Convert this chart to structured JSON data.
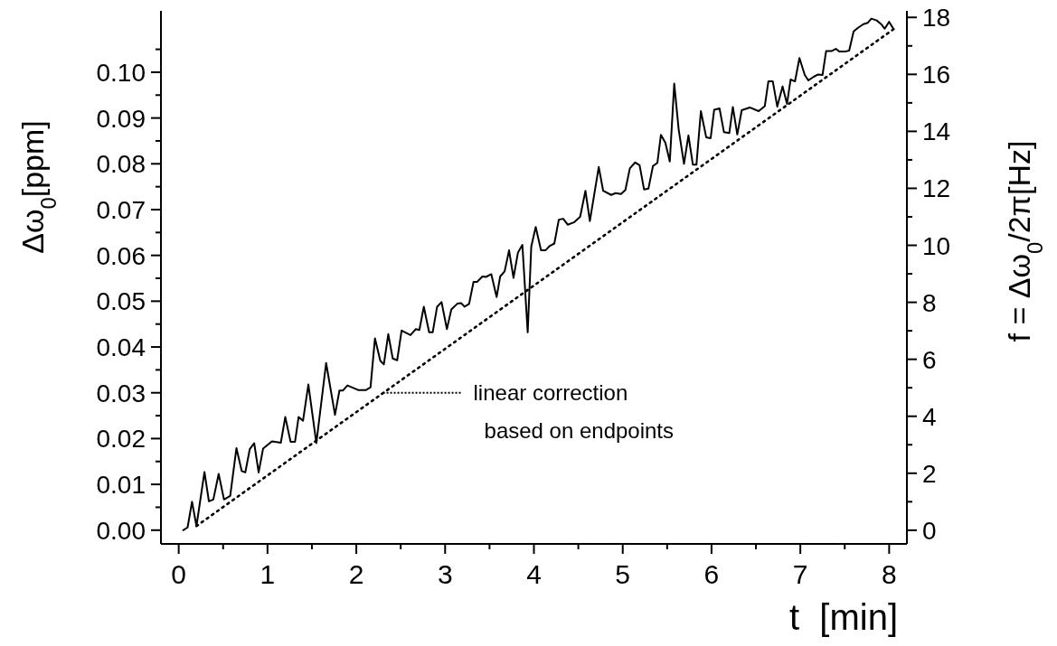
{
  "chart_data": {
    "type": "line",
    "xlabel": "t  [min]",
    "ylabel": "Δω$_{0}$[ppm]",
    "y2label": "f = Δω$_{0}$/2π[Hz]",
    "xlim": [
      -0.2,
      8.2
    ],
    "ylim": [
      -0.003,
      0.1134
    ],
    "y2lim": [
      -0.48,
      18.23
    ],
    "xticks": [
      0,
      {
        "value": 0.5,
        "label": null
      },
      1,
      {
        "value": 1.5,
        "label": null
      },
      2,
      {
        "value": 2.5,
        "label": null
      },
      3,
      {
        "value": 3.5,
        "label": null
      },
      4,
      {
        "value": 4.5,
        "label": null
      },
      5,
      {
        "value": 5.5,
        "label": null
      },
      6,
      {
        "value": 6.5,
        "label": null
      },
      7,
      {
        "value": 7.5,
        "label": null
      },
      8
    ],
    "yticks": [
      {
        "value": 0,
        "label": "0.00"
      },
      {
        "value": 0.005,
        "label": null
      },
      {
        "value": 0.01,
        "label": "0.01"
      },
      {
        "value": 0.015,
        "label": null
      },
      {
        "value": 0.02,
        "label": "0.02"
      },
      {
        "value": 0.025,
        "label": null
      },
      {
        "value": 0.03,
        "label": "0.03"
      },
      {
        "value": 0.035,
        "label": null
      },
      {
        "value": 0.04,
        "label": "0.04"
      },
      {
        "value": 0.045,
        "label": null
      },
      {
        "value": 0.05,
        "label": "0.05"
      },
      {
        "value": 0.055,
        "label": null
      },
      {
        "value": 0.06,
        "label": "0.06"
      },
      {
        "value": 0.065,
        "label": null
      },
      {
        "value": 0.07,
        "label": "0.07"
      },
      {
        "value": 0.075,
        "label": null
      },
      {
        "value": 0.08,
        "label": "0.08"
      },
      {
        "value": 0.085,
        "label": null
      },
      {
        "value": 0.09,
        "label": "0.09"
      },
      {
        "value": 0.095,
        "label": null
      },
      {
        "value": 0.1,
        "label": "0.10"
      },
      {
        "value": 0.105,
        "label": null
      }
    ],
    "y2ticks": [
      0,
      {
        "value": 1,
        "label": null
      },
      2,
      {
        "value": 3,
        "label": null
      },
      4,
      {
        "value": 5,
        "label": null
      },
      6,
      {
        "value": 7,
        "label": null
      },
      8,
      {
        "value": 9,
        "label": null
      },
      10,
      {
        "value": 11,
        "label": null
      },
      12,
      {
        "value": 13,
        "label": null
      },
      14,
      {
        "value": 15,
        "label": null
      },
      16,
      {
        "value": 17,
        "label": null
      },
      18
    ],
    "grid": false,
    "legend": "bottom",
    "series": [
      {
        "color": "#000000",
        "line_style": "solid",
        "x": [
          0.05,
          0.1,
          0.15,
          0.2,
          0.29,
          0.34,
          0.39,
          0.45,
          0.51,
          0.58,
          0.65,
          0.71,
          0.75,
          0.8,
          0.85,
          0.9,
          0.95,
          1.05,
          1.15,
          1.2,
          1.26,
          1.31,
          1.35,
          1.4,
          1.46,
          1.55,
          1.66,
          1.76,
          1.81,
          1.85,
          1.9,
          2.02,
          2.11,
          2.16,
          2.21,
          2.27,
          2.31,
          2.36,
          2.41,
          2.46,
          2.51,
          2.61,
          2.67,
          2.71,
          2.76,
          2.82,
          2.86,
          2.91,
          2.96,
          3.02,
          3.07,
          3.14,
          3.18,
          3.22,
          3.27,
          3.32,
          3.36,
          3.42,
          3.46,
          3.52,
          3.58,
          3.62,
          3.67,
          3.72,
          3.77,
          3.82,
          3.87,
          3.93,
          3.97,
          4.02,
          4.08,
          4.13,
          4.18,
          4.23,
          4.28,
          4.33,
          4.38,
          4.45,
          4.52,
          4.58,
          4.63,
          4.73,
          4.78,
          4.87,
          4.92,
          4.98,
          5.03,
          5.08,
          5.14,
          5.19,
          5.24,
          5.29,
          5.34,
          5.39,
          5.43,
          5.48,
          5.53,
          5.58,
          5.63,
          5.69,
          5.74,
          5.79,
          5.83,
          5.88,
          5.94,
          5.99,
          6.03,
          6.09,
          6.14,
          6.2,
          6.24,
          6.29,
          6.34,
          6.43,
          6.53,
          6.6,
          6.64,
          6.69,
          6.74,
          6.8,
          6.85,
          6.89,
          6.94,
          6.99,
          7.05,
          7.09,
          7.15,
          7.2,
          7.25,
          7.29,
          7.35,
          7.4,
          7.44,
          7.5,
          7.55,
          7.6,
          7.65,
          7.71,
          7.76,
          7.8,
          7.86,
          7.91,
          7.95,
          8.0,
          8.05
        ],
        "values": [
          0.0,
          0.0006,
          0.0062,
          0.0009,
          0.0127,
          0.0063,
          0.0067,
          0.0123,
          0.0067,
          0.0075,
          0.0179,
          0.0129,
          0.0126,
          0.0177,
          0.019,
          0.0126,
          0.0178,
          0.0194,
          0.0191,
          0.0247,
          0.0193,
          0.0193,
          0.0247,
          0.0239,
          0.0318,
          0.019,
          0.0365,
          0.0252,
          0.0305,
          0.0305,
          0.0316,
          0.0306,
          0.0306,
          0.0312,
          0.0419,
          0.037,
          0.0362,
          0.0428,
          0.0375,
          0.0371,
          0.0436,
          0.0426,
          0.0439,
          0.0437,
          0.0488,
          0.0432,
          0.0432,
          0.0488,
          0.0498,
          0.0439,
          0.0482,
          0.0495,
          0.0496,
          0.0488,
          0.0494,
          0.0542,
          0.0542,
          0.0554,
          0.0553,
          0.0559,
          0.0509,
          0.0554,
          0.0565,
          0.0611,
          0.0551,
          0.0606,
          0.0623,
          0.0432,
          0.0619,
          0.0662,
          0.0611,
          0.0611,
          0.0621,
          0.0626,
          0.0678,
          0.068,
          0.0667,
          0.0672,
          0.0684,
          0.0741,
          0.0675,
          0.0793,
          0.0741,
          0.0732,
          0.0736,
          0.0734,
          0.0743,
          0.079,
          0.0803,
          0.0797,
          0.0744,
          0.0746,
          0.0795,
          0.0802,
          0.0863,
          0.0846,
          0.0805,
          0.0975,
          0.0875,
          0.08,
          0.0862,
          0.0798,
          0.0798,
          0.0915,
          0.0858,
          0.0856,
          0.0918,
          0.0921,
          0.0869,
          0.0867,
          0.0924,
          0.0864,
          0.0917,
          0.0923,
          0.0915,
          0.0926,
          0.098,
          0.098,
          0.0925,
          0.0969,
          0.0931,
          0.0984,
          0.098,
          0.1031,
          0.0994,
          0.0982,
          0.099,
          0.0995,
          0.0994,
          0.1046,
          0.1046,
          0.1051,
          0.1045,
          0.1045,
          0.1047,
          0.1089,
          0.1097,
          0.1105,
          0.1108,
          0.1117,
          0.1113,
          0.1105,
          0.1095,
          0.111,
          0.1094
        ]
      },
      {
        "name": "linear correction based on endpoints",
        "color": "#000000",
        "line_style": "dotted",
        "x": [
          0.2,
          8.05
        ],
        "values": [
          0.0009,
          0.1094
        ]
      }
    ]
  }
}
